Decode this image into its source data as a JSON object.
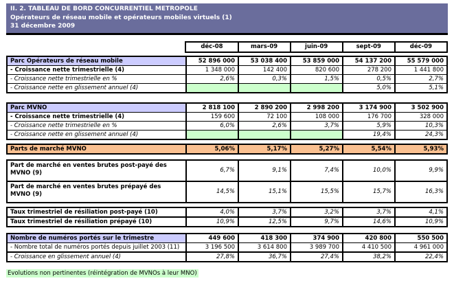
{
  "banner": {
    "line1": "II. 2. TABLEAU DE BORD CONCURRENTIEL METROPOLE",
    "line2": "Opérateurs de réseau mobile et opérateurs mobiles virtuels (1)",
    "line3": "31 décembre  2009"
  },
  "columns": [
    "déc-08",
    "mars-09",
    "juin-09",
    "sept-09",
    "déc-09"
  ],
  "blocks": [
    {
      "rows": [
        {
          "label": "Parc Opérateurs de réseau mobile",
          "label_style": "section",
          "value_style": "bold",
          "values": [
            "52 896 000",
            "53 038 400",
            "53 859 000",
            "54 137 200",
            "55 579 000"
          ]
        },
        {
          "label": "- Croissance nette trimestrielle (4)",
          "label_style": "bold",
          "value_style": "normal",
          "values": [
            "1 348 000",
            "142 400",
            "820 600",
            "278 200",
            "1 441 800"
          ]
        },
        {
          "label": "- Croissance nette trimestrielle en %",
          "label_style": "italic",
          "value_style": "italic",
          "values": [
            "2,6%",
            "0,3%",
            "1,5%",
            "0,5%",
            "2,7%"
          ]
        },
        {
          "label": "- Croissance nette en glissement annuel (4)",
          "label_style": "italic",
          "value_style": "italic",
          "values": [
            "",
            "",
            "",
            "5,0%",
            "5,1%"
          ],
          "green_cells": [
            0,
            1,
            2
          ]
        }
      ]
    },
    {
      "rows": [
        {
          "label": "Parc MVNO",
          "label_style": "section",
          "value_style": "bold",
          "values": [
            "2 818 100",
            "2 890 200",
            "2 998 200",
            "3 174 900",
            "3 502 900"
          ]
        },
        {
          "label": "- Croissance nette trimestrielle (4)",
          "label_style": "bold",
          "value_style": "normal",
          "values": [
            "159 600",
            "72 100",
            "108 000",
            "176 700",
            "328 000"
          ]
        },
        {
          "label": "- Croissance nette trimestrielle en %",
          "label_style": "italic",
          "value_style": "italic",
          "values": [
            "6,0%",
            "2,6%",
            "3,7%",
            "5,9%",
            "10,3%"
          ]
        },
        {
          "label": "- Croissance nette en glissement annuel (4)",
          "label_style": "italic",
          "value_style": "italic",
          "values": [
            "",
            "",
            "",
            "19,4%",
            "24,3%"
          ],
          "green_cells": [
            0,
            1,
            2
          ]
        }
      ]
    },
    {
      "rows": [
        {
          "label": "Parts de marché MVNO",
          "label_style": "peach",
          "value_style": "peach-bold",
          "values": [
            "5,06%",
            "5,17%",
            "5,27%",
            "5,54%",
            "5,93%"
          ]
        }
      ]
    },
    {
      "rows": [
        {
          "label": "Part de marché en ventes brutes post-payé des MVNO (9)",
          "label_style": "bold",
          "value_style": "italic",
          "tall": true,
          "values": [
            "6,7%",
            "9,1%",
            "7,4%",
            "10,0%",
            "9,9%"
          ]
        },
        {
          "label": "Part de marché en ventes brutes prépayé des MVNO (9)",
          "label_style": "bold",
          "value_style": "italic",
          "tall": true,
          "values": [
            "14,5%",
            "15,1%",
            "15,5%",
            "15,7%",
            "16,3%"
          ]
        }
      ]
    },
    {
      "rows": [
        {
          "label": "Taux trimestriel de résiliation post-payé (10)",
          "label_style": "bold",
          "value_style": "italic",
          "values": [
            "4,0%",
            "3,7%",
            "3,2%",
            "3,7%",
            "4,1%"
          ]
        },
        {
          "label": "Taux trimestriel de résiliation prépayé (10)",
          "label_style": "bold",
          "value_style": "italic",
          "values": [
            "10,9%",
            "12,5%",
            "9,7%",
            "14,6%",
            "10,9%"
          ]
        }
      ]
    },
    {
      "rows": [
        {
          "label": "Nombre de numéros portés sur le trimestre",
          "label_style": "section",
          "value_style": "bold",
          "values": [
            "449 600",
            "418 300",
            "374 900",
            "420 800",
            "550 500"
          ]
        },
        {
          "label": "- Nombre total de numéros portés depuis juillet 2003 (11)",
          "label_style": "normal",
          "value_style": "normal",
          "values": [
            "3 196 500",
            "3 614 800",
            "3 989 700",
            "4 410 500",
            "4 961 000"
          ]
        },
        {
          "label": "- Croissance en glissement annuel (4)",
          "label_style": "italic",
          "value_style": "italic",
          "values": [
            "27,8%",
            "36,7%",
            "27,4%",
            "38,2%",
            "22,4%"
          ],
          "sep_above": true
        }
      ]
    }
  ],
  "footnote": "Evolutions non pertinentes (réintégration de MVNOs à leur MNO)",
  "colors": {
    "banner": "#6A6D9C",
    "section_row": "#CCCCFF",
    "market_share_row": "#FAC090",
    "non_pertinent_green": "#CCFFCC"
  }
}
